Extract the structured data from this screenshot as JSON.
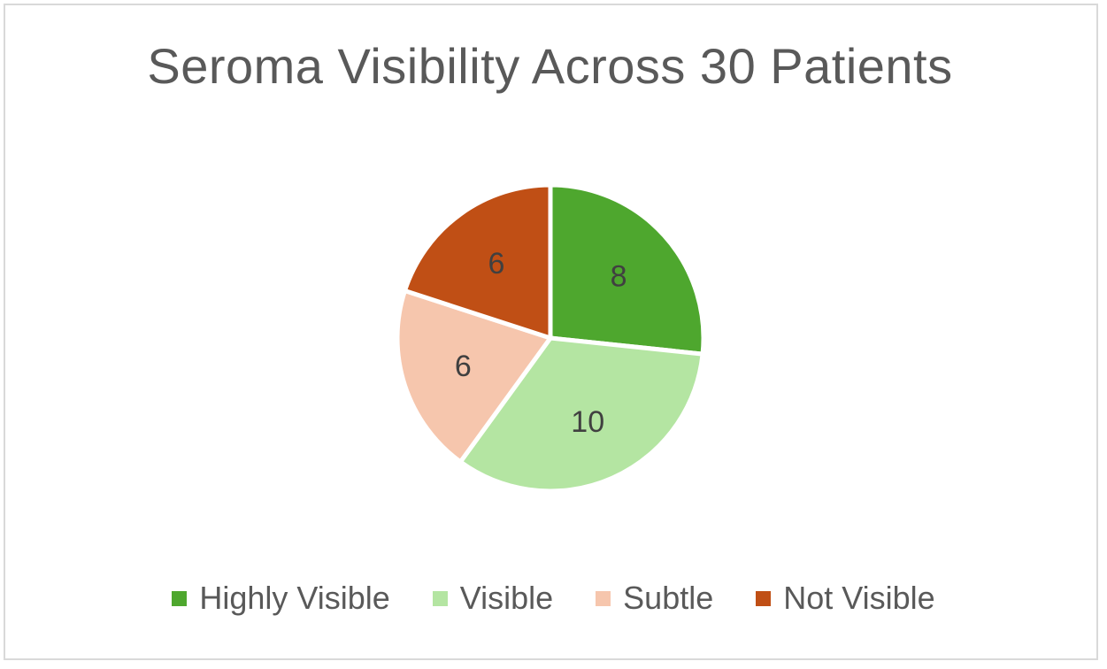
{
  "chart_data": {
    "type": "pie",
    "title": "Seroma Visibility Across 30 Patients",
    "categories": [
      "Highly Visible",
      "Visible",
      "Subtle",
      "Not Visible"
    ],
    "values": [
      8,
      10,
      6,
      6
    ],
    "colors": [
      "#4ea72e",
      "#b4e5a2",
      "#f6c6ad",
      "#c04f15"
    ],
    "data_labels": [
      "8",
      "10",
      "6",
      "6"
    ],
    "start_angle": "12 o'clock, clockwise",
    "legend_position": "bottom"
  }
}
